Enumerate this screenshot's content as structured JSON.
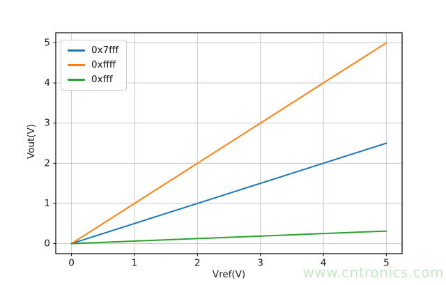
{
  "figure": {
    "background": "#ffffff",
    "watermark": {
      "text": "www.cntronics.com",
      "color": "#c6e8c6"
    }
  },
  "chart_data": {
    "type": "line",
    "title": "",
    "xlabel": "Vref(V)",
    "ylabel": "Vout(V)",
    "xlim": [
      -0.25,
      5.25
    ],
    "ylim": [
      -0.25,
      5.25
    ],
    "xticks": [
      0,
      1,
      2,
      3,
      4,
      5
    ],
    "yticks": [
      0,
      1,
      2,
      3,
      4,
      5
    ],
    "grid": true,
    "grid_color": "#c8c8c8",
    "frame_color": "#000000",
    "legend_position": "upper-left",
    "x": [
      0,
      5
    ],
    "series": [
      {
        "name": "0x7fff",
        "color": "#1f77b4",
        "values": [
          0,
          2.5
        ]
      },
      {
        "name": "0xffff",
        "color": "#ff7f0e",
        "values": [
          0,
          5.0
        ]
      },
      {
        "name": "0xfff",
        "color": "#2ca02c",
        "values": [
          0,
          0.3125
        ]
      }
    ]
  }
}
